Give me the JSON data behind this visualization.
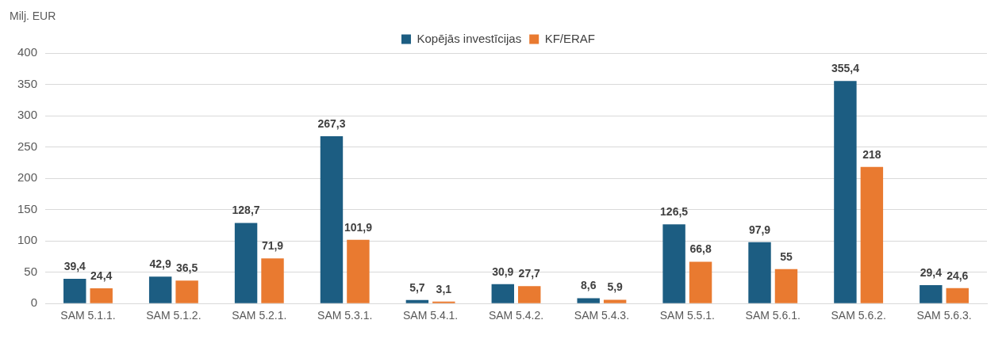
{
  "chart_data": {
    "type": "bar",
    "ylabel": "Milj. EUR",
    "categories": [
      "SAM 5.1.1.",
      "SAM 5.1.2.",
      "SAM 5.2.1.",
      "SAM 5.3.1.",
      "SAM 5.4.1.",
      "SAM 5.4.2.",
      "SAM 5.4.3.",
      "SAM 5.5.1.",
      "SAM 5.6.1.",
      "SAM 5.6.2.",
      "SAM 5.6.3."
    ],
    "series": [
      {
        "name": "Kopējās investīcijas",
        "color": "#1c5d82",
        "values": [
          39.4,
          42.9,
          128.7,
          267.3,
          5.7,
          30.9,
          8.6,
          126.5,
          97.9,
          355.4,
          29.4
        ],
        "value_labels": [
          "39,4",
          "42,9",
          "128,7",
          "267,3",
          "5,7",
          "30,9",
          "8,6",
          "126,5",
          "97,9",
          "355,4",
          "29,4"
        ]
      },
      {
        "name": "KF/ERAF",
        "color": "#e97a30",
        "values": [
          24.4,
          36.5,
          71.9,
          101.9,
          3.1,
          27.7,
          5.9,
          66.8,
          55,
          218,
          24.6
        ],
        "value_labels": [
          "24,4",
          "36,5",
          "71,9",
          "101,9",
          "3,1",
          "27,7",
          "5,9",
          "66,8",
          "55",
          "218",
          "24,6"
        ]
      }
    ],
    "ylim": [
      0,
      400
    ],
    "yticks": [
      0,
      50,
      100,
      150,
      200,
      250,
      300,
      350,
      400
    ],
    "grid": "y",
    "legend": "top"
  }
}
